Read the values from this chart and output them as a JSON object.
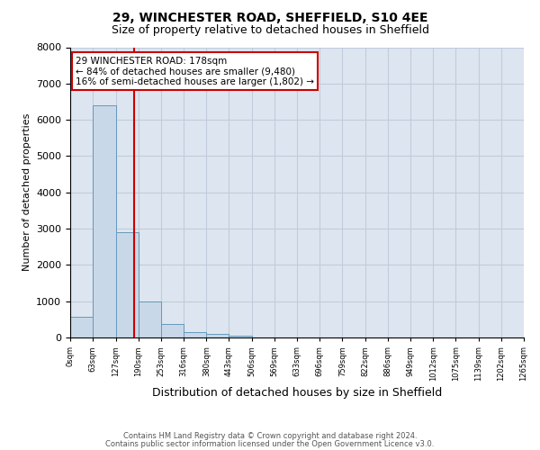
{
  "title1": "29, WINCHESTER ROAD, SHEFFIELD, S10 4EE",
  "title2": "Size of property relative to detached houses in Sheffield",
  "xlabel": "Distribution of detached houses by size in Sheffield",
  "ylabel": "Number of detached properties",
  "bar_edges": [
    0,
    63,
    127,
    190,
    253,
    316,
    380,
    443,
    506,
    569,
    633,
    696,
    759,
    822,
    886,
    949,
    1012,
    1075,
    1139,
    1202,
    1265
  ],
  "bar_values": [
    570,
    6400,
    2900,
    1000,
    370,
    160,
    100,
    50,
    0,
    0,
    0,
    0,
    0,
    0,
    0,
    0,
    0,
    0,
    0,
    0
  ],
  "bar_color": "#c8d8e8",
  "bar_edge_color": "#6699bb",
  "axes_bg_color": "#dde6f0",
  "property_line_x": 178,
  "property_line_color": "#cc0000",
  "ylim": [
    0,
    8000
  ],
  "yticks": [
    0,
    1000,
    2000,
    3000,
    4000,
    5000,
    6000,
    7000,
    8000
  ],
  "annotation_line1": "29 WINCHESTER ROAD: 178sqm",
  "annotation_line2": "← 84% of detached houses are smaller (9,480)",
  "annotation_line3": "16% of semi-detached houses are larger (1,802) →",
  "annotation_box_color": "#ffffff",
  "annotation_border_color": "#cc0000",
  "footnote1": "Contains HM Land Registry data © Crown copyright and database right 2024.",
  "footnote2": "Contains public sector information licensed under the Open Government Licence v3.0.",
  "tick_labels": [
    "0sqm",
    "63sqm",
    "127sqm",
    "190sqm",
    "253sqm",
    "316sqm",
    "380sqm",
    "443sqm",
    "506sqm",
    "569sqm",
    "633sqm",
    "696sqm",
    "759sqm",
    "822sqm",
    "886sqm",
    "949sqm",
    "1012sqm",
    "1075sqm",
    "1139sqm",
    "1202sqm",
    "1265sqm"
  ],
  "background_color": "#ffffff",
  "grid_color": "#c0ccdd"
}
